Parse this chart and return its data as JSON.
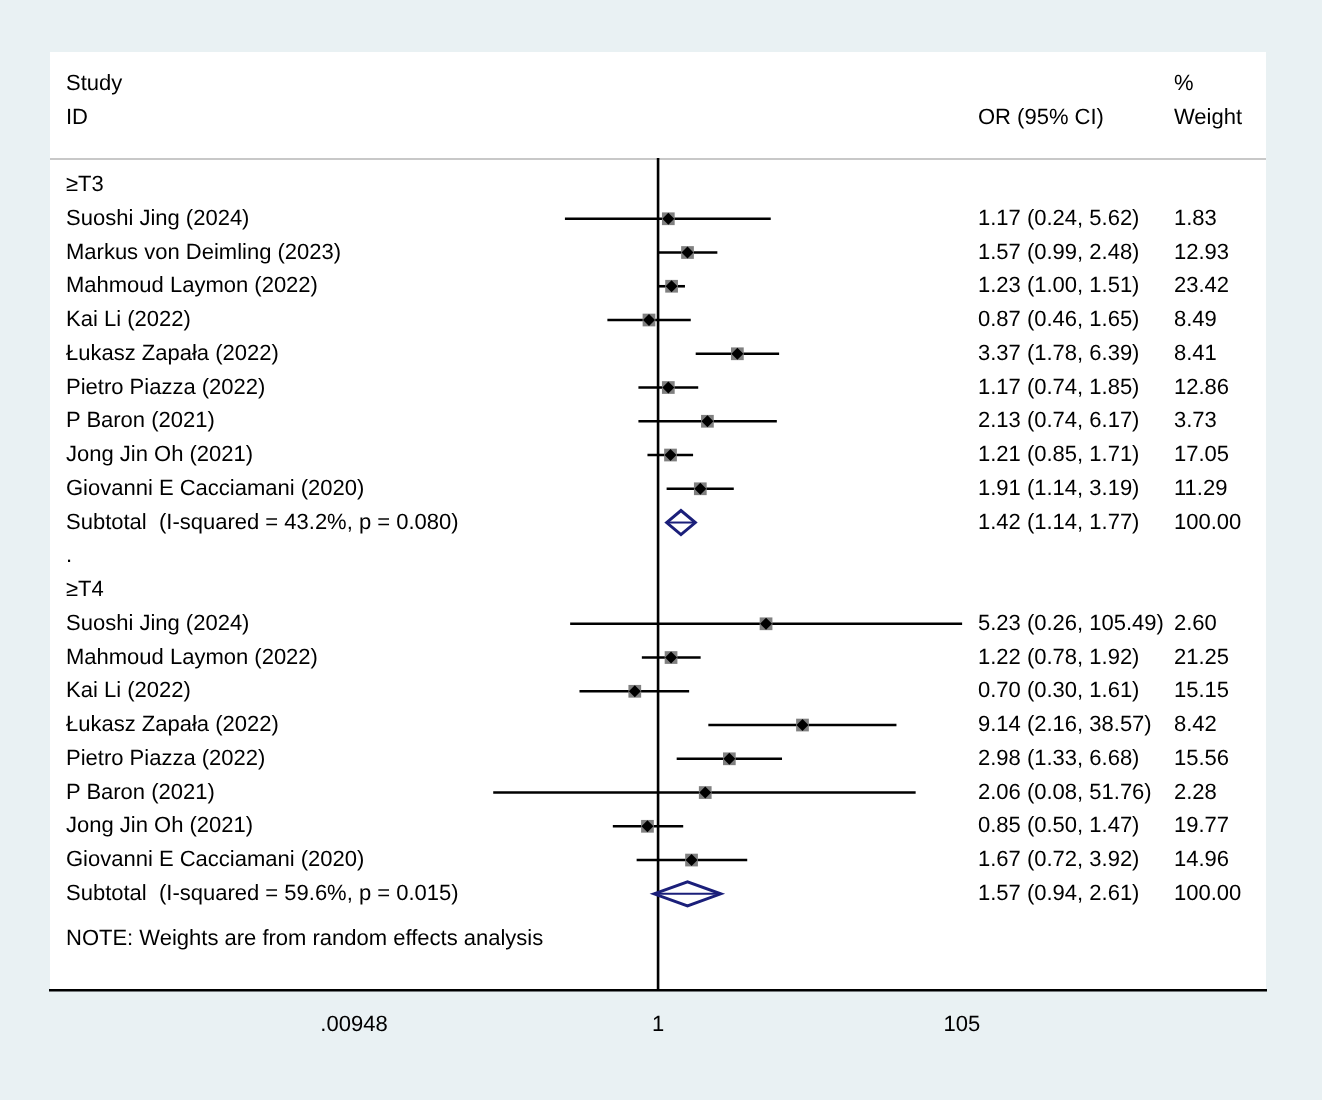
{
  "chart_data": {
    "type": "scatter",
    "orientation": "horizontal",
    "log": "x",
    "categories": [
      "≥T3",
      "Suoshi Jing (2024)",
      "Markus von Deimling (2023)",
      "Mahmoud Laymon (2022)",
      "Kai Li (2022)",
      "Łukasz Zapała (2022)",
      "Pietro Piazza (2022)",
      "P Baron (2021)",
      "Jong Jin Oh (2021)",
      "Giovanni E Cacciamani (2020)",
      "Subtotal  (I-squared = 43.2%, p = 0.080)",
      ".",
      "≥T4",
      "Suoshi Jing (2024)",
      "Mahmoud Laymon (2022)",
      "Kai Li (2022)",
      "Łukasz Zapała (2022)",
      "Pietro Piazza (2022)",
      "P Baron (2021)",
      "Jong Jin Oh (2021)",
      "Giovanni E Cacciamani (2020)",
      "Subtotal  (I-squared = 59.6%, p = 0.015)"
    ],
    "series": [
      {
        "color": "#808080",
        "marker": "square",
        "values": [
          null,
          1.17,
          1.57,
          1.23,
          0.87,
          3.37,
          1.17,
          2.13,
          1.21,
          1.91,
          null,
          null,
          null,
          5.23,
          1.22,
          0.7,
          9.14,
          2.98,
          2.06,
          0.85,
          1.67,
          null
        ],
        "errors": [
          null,
          [
            0.24,
            5.62
          ],
          [
            0.99,
            2.48
          ],
          [
            1.0,
            1.51
          ],
          [
            0.46,
            1.65
          ],
          [
            1.78,
            6.39
          ],
          [
            0.74,
            1.85
          ],
          [
            0.74,
            6.17
          ],
          [
            0.85,
            1.71
          ],
          [
            1.14,
            3.19
          ],
          null,
          null,
          null,
          [
            0.26,
            105.49
          ],
          [
            0.78,
            1.92
          ],
          [
            0.3,
            1.61
          ],
          [
            2.16,
            38.57
          ],
          [
            1.33,
            6.68
          ],
          [
            0.08,
            51.76
          ],
          [
            0.5,
            1.47
          ],
          [
            0.72,
            3.92
          ],
          null
        ]
      },
      {
        "color": "#1b1f7a",
        "marker": "diamond",
        "values": [
          null,
          null,
          null,
          null,
          null,
          null,
          null,
          null,
          null,
          null,
          1.42,
          null,
          null,
          null,
          null,
          null,
          null,
          null,
          null,
          null,
          null,
          1.57
        ],
        "errors": [
          null,
          null,
          null,
          null,
          null,
          null,
          null,
          null,
          null,
          null,
          [
            1.14,
            1.77
          ],
          null,
          null,
          null,
          null,
          null,
          null,
          null,
          null,
          null,
          null,
          [
            0.94,
            2.61
          ]
        ]
      }
    ],
    "xlim": [
      8.99e-05,
      11100
    ],
    "xticks": [
      {
        "value": 0.00948,
        "label": ".00948"
      },
      1,
      105
    ],
    "ref_lines": [
      {
        "axis": "x",
        "value": 1,
        "color": "#000000"
      }
    ],
    "annotations": [
      "Study",
      "ID",
      "OR (95% CI)",
      "%",
      "Weight",
      "1.17 (0.24, 5.62)",
      "1.83",
      "1.57 (0.99, 2.48)",
      "12.93",
      "1.23 (1.00, 1.51)",
      "23.42",
      "0.87 (0.46, 1.65)",
      "8.49",
      "3.37 (1.78, 6.39)",
      "8.41",
      "1.17 (0.74, 1.85)",
      "12.86",
      "2.13 (0.74, 6.17)",
      "3.73",
      "1.21 (0.85, 1.71)",
      "17.05",
      "1.91 (1.14, 3.19)",
      "11.29",
      "1.42 (1.14, 1.77)",
      "100.00",
      "5.23 (0.26, 105.49)",
      "2.60",
      "1.22 (0.78, 1.92)",
      "21.25",
      "0.70 (0.30, 1.61)",
      "15.15",
      "9.14 (2.16, 38.57)",
      "8.42",
      "2.98 (1.33, 6.68)",
      "15.56",
      "2.06 (0.08, 51.76)",
      "2.28",
      "0.85 (0.50, 1.47)",
      "19.77",
      "1.67 (0.72, 3.92)",
      "14.96",
      "1.57 (0.94, 2.61)",
      "100.00",
      "NOTE: Weights are from random effects analysis"
    ]
  }
}
